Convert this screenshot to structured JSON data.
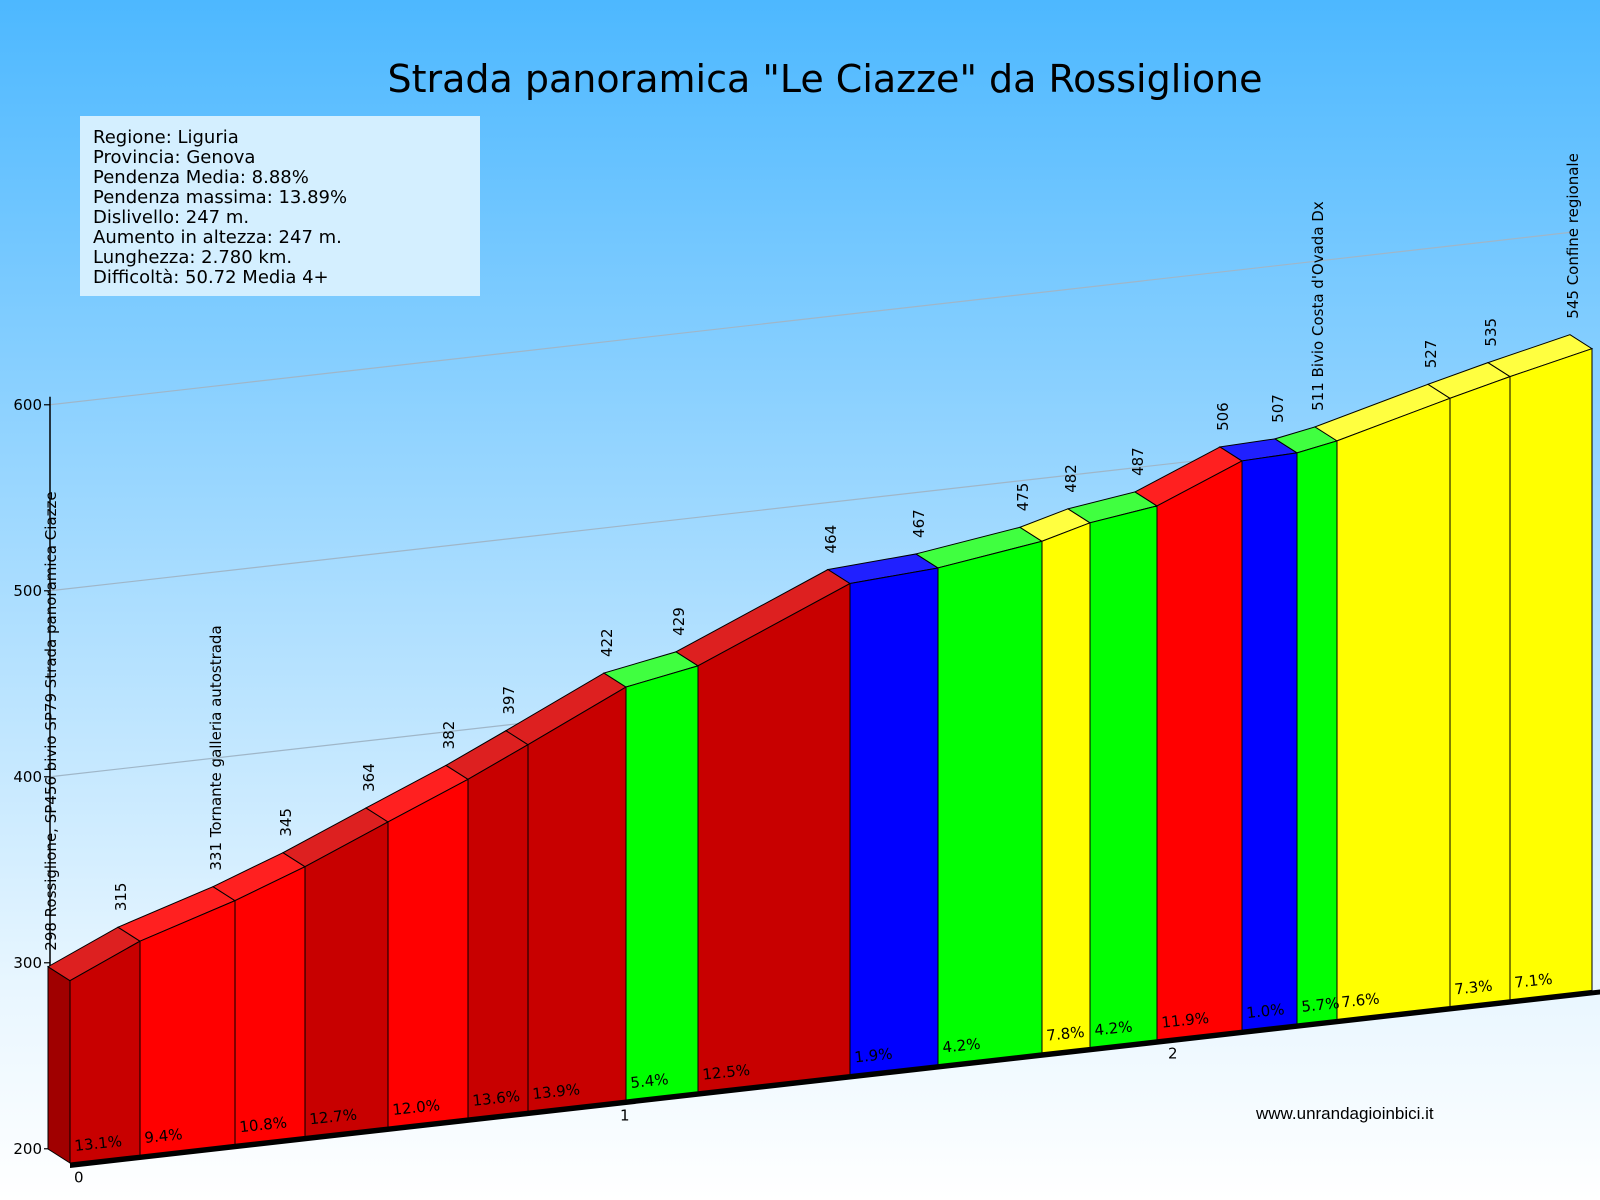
{
  "title": "Strada panoramica \"Le Ciazze\" da Rossiglione",
  "info": [
    "Regione: Liguria",
    "Provincia: Genova",
    "Pendenza Media: 8.88%",
    "Pendenza massima: 13.89%",
    "Dislivello: 247 m.",
    "Aumento in altezza: 247 m.",
    "Lunghezza: 2.780 km.",
    "Difficoltà: 50.72 Media 4+"
  ],
  "credit": "www.unrandagioinbici.it",
  "colors": {
    "sky_top": "#4db8ff",
    "sky_bottom": "#e8f6ff",
    "dark_red": "#c80000",
    "red": "#ff0000",
    "green": "#00ff00",
    "blue": "#0000ff",
    "yellow": "#ffff00"
  },
  "chart_data": {
    "type": "area",
    "xlabel": "",
    "ylabel": "",
    "ylim": [
      200,
      600
    ],
    "y_ticks": [
      "200",
      "300",
      "400",
      "500",
      "600"
    ],
    "x_ticks": [
      "0",
      "1",
      "2"
    ],
    "altitudes": [
      298,
      315,
      331,
      345,
      364,
      382,
      397,
      422,
      429,
      464,
      467,
      475,
      482,
      487,
      506,
      507,
      511,
      527,
      535,
      545
    ],
    "altitude_labels": [
      "298 Rossiglione, SP456 bivio SP79 Strada panoramica Ciazze",
      "315",
      "331 Tornante galleria autostrada",
      "345",
      "364",
      "382",
      "397",
      "422",
      "429",
      "464",
      "467",
      "475",
      "482",
      "487",
      "506",
      "507",
      "511 Bivio Costa d'Ovada Dx",
      "527",
      "535",
      "545 Confine regionale"
    ],
    "segments": [
      {
        "gradient": "13.1%",
        "color": "dark_red"
      },
      {
        "gradient": "9.4%",
        "color": "red"
      },
      {
        "gradient": "10.8%",
        "color": "red"
      },
      {
        "gradient": "12.7%",
        "color": "dark_red"
      },
      {
        "gradient": "12.0%",
        "color": "red"
      },
      {
        "gradient": "13.6%",
        "color": "dark_red"
      },
      {
        "gradient": "13.9%",
        "color": "dark_red"
      },
      {
        "gradient": "5.4%",
        "color": "green"
      },
      {
        "gradient": "12.5%",
        "color": "dark_red"
      },
      {
        "gradient": "1.9%",
        "color": "blue"
      },
      {
        "gradient": "4.2%",
        "color": "green"
      },
      {
        "gradient": "7.8%",
        "color": "yellow"
      },
      {
        "gradient": "4.2%",
        "color": "green"
      },
      {
        "gradient": "11.9%",
        "color": "red"
      },
      {
        "gradient": "1.0%",
        "color": "blue"
      },
      {
        "gradient": "5.7%",
        "color": "green"
      },
      {
        "gradient": "7.6%",
        "color": "yellow"
      },
      {
        "gradient": "7.3%",
        "color": "yellow"
      },
      {
        "gradient": "7.1%",
        "color": "yellow"
      }
    ]
  }
}
